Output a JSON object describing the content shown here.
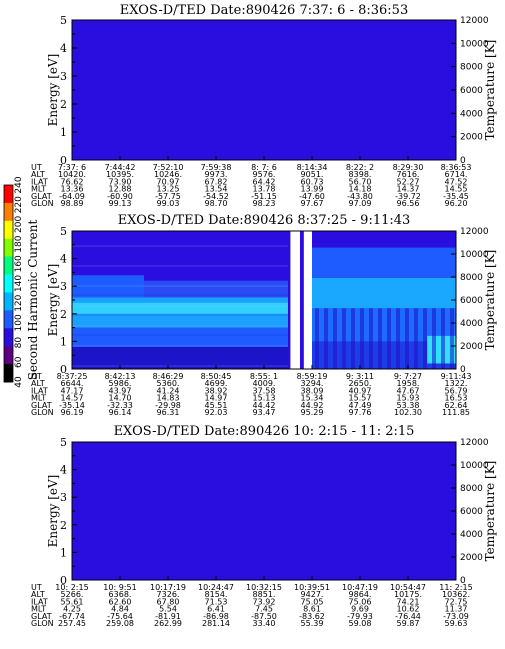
{
  "chart_data": [
    {
      "type": "heatmap",
      "title": "EXOS-D/TED   Date:890426   7:37: 6 - 8:36:53",
      "ylabel": "Energy [eV]",
      "y2label": "Temperature [K]",
      "ylim": [
        0,
        5
      ],
      "y2lim": [
        0,
        12000
      ],
      "yticks": [
        "0",
        "1",
        "2",
        "3",
        "4",
        "5"
      ],
      "y2ticks": [
        "0",
        "2000",
        "4000",
        "6000",
        "8000",
        "10000",
        "12000"
      ],
      "fill_color": "#2a0ee0",
      "gaps": [
        {
          "from_col": 8,
          "to_col": 8.56
        }
      ],
      "table_labels": [
        "UT",
        "ALT",
        "ILAT",
        "MLT",
        "GLAT",
        "GLON"
      ],
      "table": [
        [
          "7:37: 6",
          "7:44:42",
          "7:52:10",
          "7:59:38",
          "8: 7: 6",
          "8:14:34",
          "8:22: 2",
          "8:29:30",
          "8:36:53"
        ],
        [
          "10420.",
          "10395.",
          "10246.",
          "9973.",
          "9576.",
          "9051.",
          "8398.",
          "7616.",
          "6714."
        ],
        [
          "76.62",
          "73.90",
          "70.97",
          "67.82",
          "64.42",
          "60.73",
          "56.70",
          "52.27",
          "47.52"
        ],
        [
          "13.36",
          "12.88",
          "13.25",
          "13.54",
          "13.78",
          "13.99",
          "14.18",
          "14.37",
          "14.55"
        ],
        [
          "-64.09",
          "-60.90",
          "-57.75",
          "-54.52",
          "-51.15",
          "-47.60",
          "-43.80",
          "-39.72",
          "-35.45"
        ],
        [
          "98.89",
          "99.13",
          "99.03",
          "98.70",
          "98.23",
          "97.67",
          "97.09",
          "96.56",
          "96.20"
        ]
      ]
    },
    {
      "type": "heatmap",
      "title": "EXOS-D/TED   Date:890426   8:37:25 - 9:11:43",
      "ylabel": "Energy [eV]",
      "y2label": "Temperature [K]",
      "ylim": [
        0,
        5
      ],
      "y2lim": [
        0,
        12000
      ],
      "yticks": [
        "0",
        "1",
        "2",
        "3",
        "4",
        "5"
      ],
      "y2ticks": [
        "0",
        "2000",
        "4000",
        "6000",
        "8000",
        "10000",
        "12000"
      ],
      "fill_color": "#2a0ee0",
      "gaps": [
        {
          "from_col": 4.55,
          "to_col": 4.75
        },
        {
          "from_col": 4.83,
          "to_col": 5.0
        }
      ],
      "table_labels": [
        "UT",
        "ALT",
        "ILAT",
        "MLT",
        "GLAT",
        "GLON"
      ],
      "table": [
        [
          "8:37:25",
          "8:42:13",
          "8:46:29",
          "8:50:45",
          "8:55: 1",
          "8:59:19",
          "9: 3:11",
          "9: 7:27",
          "9:11:43"
        ],
        [
          "6644.",
          "5986.",
          "5360.",
          "4699.",
          "4009.",
          "3294.",
          "2650.",
          "1958.",
          "1322."
        ],
        [
          "47.17",
          "43.97",
          "41.24",
          "38.92",
          "37.58",
          "38.09",
          "40.97",
          "47.67",
          "56.79"
        ],
        [
          "14.57",
          "14.70",
          "14.83",
          "14.97",
          "15.13",
          "15.34",
          "15.57",
          "15.93",
          "16.53"
        ],
        [
          "-35.14",
          "-32.33",
          "-29.98",
          "45.51",
          "44.42",
          "44.92",
          "47.49",
          "53.38",
          "62.64"
        ],
        [
          "96.19",
          "96.14",
          "96.31",
          "92.03",
          "93.47",
          "95.29",
          "97.76",
          "102.30",
          "111.85"
        ]
      ],
      "colorbar": {
        "label": "Second Harmonic Current",
        "ticks": [
          "40",
          "60",
          "80",
          "100",
          "120",
          "140",
          "160",
          "180",
          "200",
          "220",
          "240"
        ],
        "colors": [
          "#000000",
          "#5a0080",
          "#2a0ee0",
          "#1e5cff",
          "#00b4ff",
          "#00ffff",
          "#00ff80",
          "#80ff00",
          "#ffff00",
          "#ff8000",
          "#ff0000"
        ]
      }
    },
    {
      "type": "heatmap",
      "title": "EXOS-D/TED   Date:890426   10: 2:15 - 11: 2:15",
      "ylabel": "Energy [eV]",
      "y2label": "Temperature [K]",
      "ylim": [
        0,
        5
      ],
      "y2lim": [
        0,
        12000
      ],
      "yticks": [
        "0",
        "1",
        "2",
        "3",
        "4",
        "5"
      ],
      "y2ticks": [
        "0",
        "2000",
        "4000",
        "6000",
        "8000",
        "10000",
        "12000"
      ],
      "fill_color": "#2a0ee0",
      "gaps": [],
      "table_labels": [
        "UT",
        "ALT",
        "ILAT",
        "MLT",
        "GLAT",
        "GLON"
      ],
      "table": [
        [
          "10: 2:15",
          "10: 9:51",
          "10:17:19",
          "10:24:47",
          "10:32:15",
          "10:39:51",
          "10:47:19",
          "10:54:47",
          "11: 2:15"
        ],
        [
          "5266.",
          "6368.",
          "7326.",
          "8154.",
          "8851.",
          "9427.",
          "9864.",
          "10175.",
          "10362."
        ],
        [
          "55.61",
          "62.60",
          "67.80",
          "71.53",
          "73.92",
          "75.05",
          "75.06",
          "74.21",
          "72.75"
        ],
        [
          "4.25",
          "4.84",
          "5.54",
          "6.41",
          "7.45",
          "8.61",
          "9.69",
          "10.62",
          "11.37"
        ],
        [
          "-67.74",
          "-75.64",
          "-81.91",
          "-86.98",
          "-87.50",
          "-83.62",
          "-79.93",
          "-76.44",
          "-73.09"
        ],
        [
          "257.45",
          "259.08",
          "262.99",
          "281.14",
          "33.40",
          "55.39",
          "59.08",
          "59.87",
          "59.63"
        ]
      ]
    }
  ]
}
